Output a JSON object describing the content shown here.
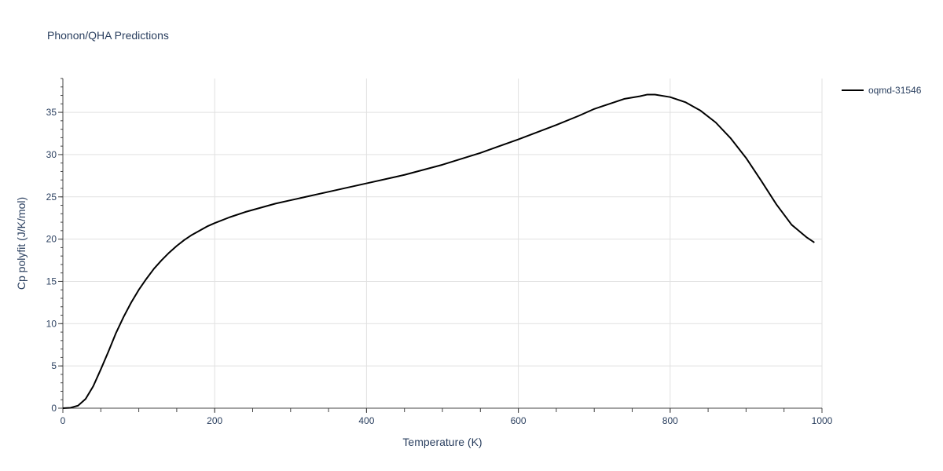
{
  "chart_data": {
    "type": "line",
    "title": "Phonon/QHA Predictions",
    "xlabel": "Temperature (K)",
    "ylabel": "Cp polyfit (J/K/mol)",
    "xlim": [
      0,
      1000
    ],
    "ylim": [
      0,
      39
    ],
    "x_ticks": [
      0,
      200,
      400,
      600,
      800,
      1000
    ],
    "y_ticks": [
      0,
      5,
      10,
      15,
      20,
      25,
      30,
      35
    ],
    "grid": true,
    "legend_position": "top-right",
    "series": [
      {
        "name": "oqmd-31546",
        "color": "#000000",
        "x": [
          0,
          10,
          20,
          30,
          40,
          50,
          60,
          70,
          80,
          90,
          100,
          110,
          120,
          130,
          140,
          150,
          160,
          170,
          180,
          190,
          200,
          220,
          240,
          260,
          280,
          300,
          350,
          400,
          450,
          500,
          550,
          600,
          650,
          680,
          700,
          720,
          740,
          760,
          770,
          780,
          800,
          820,
          840,
          860,
          880,
          900,
          920,
          940,
          960,
          980,
          990
        ],
        "y": [
          0,
          0.05,
          0.3,
          1.1,
          2.6,
          4.6,
          6.7,
          8.9,
          10.8,
          12.5,
          14.0,
          15.3,
          16.5,
          17.5,
          18.4,
          19.2,
          19.9,
          20.5,
          21.0,
          21.5,
          21.9,
          22.6,
          23.2,
          23.7,
          24.2,
          24.6,
          25.6,
          26.6,
          27.6,
          28.8,
          30.2,
          31.8,
          33.5,
          34.6,
          35.4,
          36.0,
          36.6,
          36.9,
          37.1,
          37.1,
          36.8,
          36.2,
          35.2,
          33.8,
          31.9,
          29.6,
          26.9,
          24.1,
          21.7,
          20.2,
          19.6
        ]
      }
    ]
  }
}
